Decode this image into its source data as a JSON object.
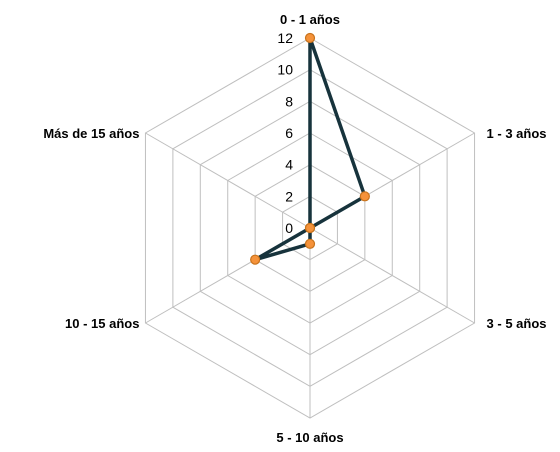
{
  "chart_data": {
    "type": "radar",
    "categories": [
      "0 - 1 años",
      "1 - 3 años",
      "3 - 5 años",
      "5 - 10 años",
      "10 - 15 años",
      "Más de 15  años"
    ],
    "values": [
      12,
      4,
      0,
      1,
      4,
      0
    ],
    "rlim": [
      0,
      12
    ],
    "ticks": [
      "0",
      "2",
      "4",
      "6",
      "8",
      "10",
      "12"
    ],
    "grid": true,
    "legend": "none",
    "colors": {
      "line": "#17333c",
      "marker_fill": "#f5923a",
      "marker_edge": "#c8731c",
      "grid": "#bfbfbf"
    }
  }
}
